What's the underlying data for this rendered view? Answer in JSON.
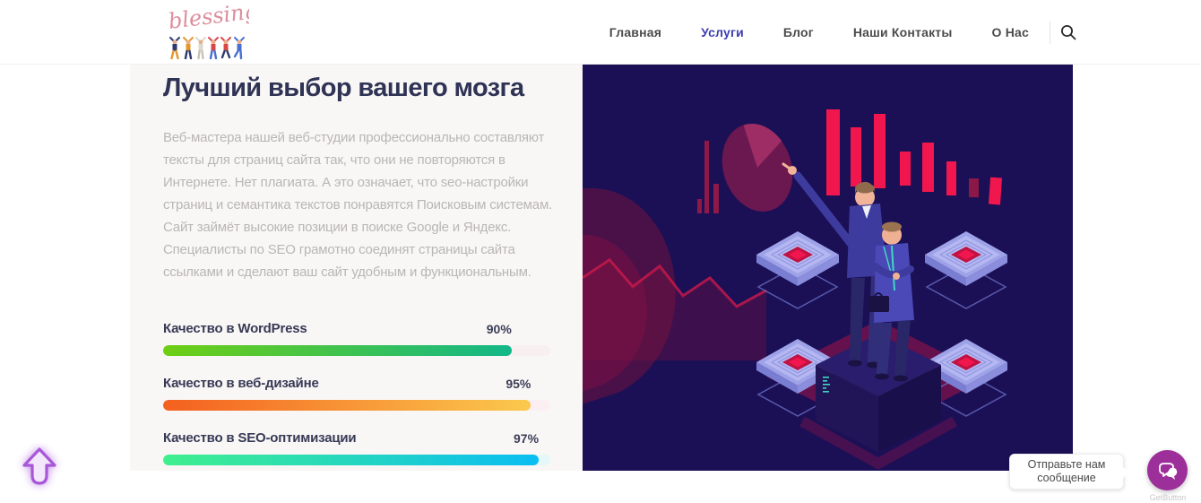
{
  "header": {
    "logo_text": "blessing",
    "nav": [
      {
        "label": "Главная",
        "active": false
      },
      {
        "label": "Услуги",
        "active": true
      },
      {
        "label": "Блог",
        "active": false
      },
      {
        "label": "Наши Контакты",
        "active": false
      },
      {
        "label": "О Нас",
        "active": false
      }
    ],
    "active_color": "#3c3cb0"
  },
  "main": {
    "heading": "Лучший выбор вашего мозга",
    "paragraph": "Веб-мастера нашей веб-студии профессионально составляют тексты для страниц сайта так, что они не повторяются в Интернете. Нет плагиата. А это означает, что seo-настройки страниц и семантика текстов понравятся Поисковым системам. Сайт займёт высокие позиции в поиске Google и Яндекс. Специалисты по SEO грамотно соединят страницы сайта ссылками и сделают ваш сайт удобным и функциональным.",
    "skills": [
      {
        "label": "Качество в WordPress",
        "value": "90%",
        "percent": 90,
        "gradient_start": "#6fce13",
        "gradient_end": "#13b789",
        "track": "#f8eff1"
      },
      {
        "label": "Качество в веб-дизайне",
        "value": "95%",
        "percent": 95,
        "gradient_start": "#f4601f",
        "gradient_end": "#fbc94d",
        "track": "#fbeff4"
      },
      {
        "label": "Качество в SEO-оптимизации",
        "value": "97%",
        "percent": 97,
        "gradient_start": "#40ef8d",
        "gradient_end": "#0abdf2",
        "track": "#e4f8f7"
      }
    ]
  },
  "illustration": {
    "name": "isometric analysts with charts",
    "bg_color": "#1b1055",
    "accent_color": "#f2164e"
  },
  "chat": {
    "tooltip": "Отправьте нам сообщение",
    "brand": "GetButton",
    "button_color": "#9d2f9b"
  }
}
